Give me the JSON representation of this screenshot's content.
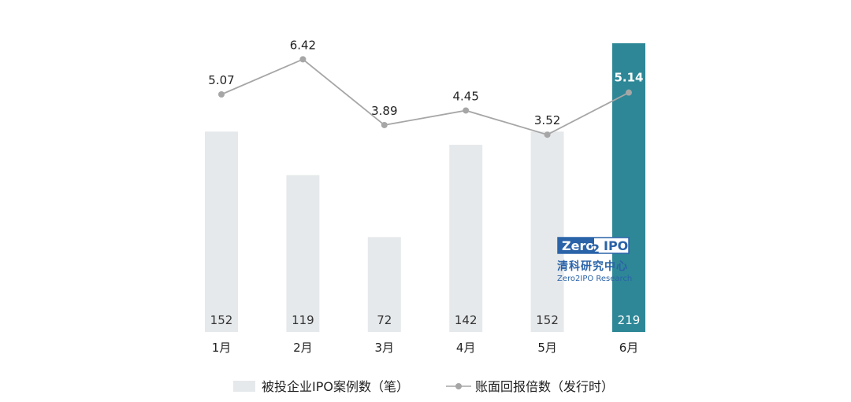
{
  "chart_data": {
    "type": "bar+line",
    "categories": [
      "1月",
      "2月",
      "3月",
      "4月",
      "5月",
      "6月"
    ],
    "series": [
      {
        "name": "被投企业IPO案例数（笔）",
        "type": "bar",
        "values": [
          152,
          119,
          72,
          142,
          152,
          219
        ]
      },
      {
        "name": "账面回报倍数（发行时）",
        "type": "line",
        "values": [
          5.07,
          6.42,
          3.89,
          4.45,
          3.52,
          5.14
        ]
      }
    ],
    "highlight_index": 5,
    "legend_position": "bottom",
    "grid": false,
    "colors": {
      "bar": "#e6e9eb",
      "bar_highlight": "#2e8796",
      "line": "#a6a6a6"
    }
  },
  "watermark": {
    "logo_left": "Zero",
    "logo_mid": "2",
    "logo_right": "IPO",
    "cn": "清科研究中心",
    "en": "Zero2IPO Research"
  }
}
